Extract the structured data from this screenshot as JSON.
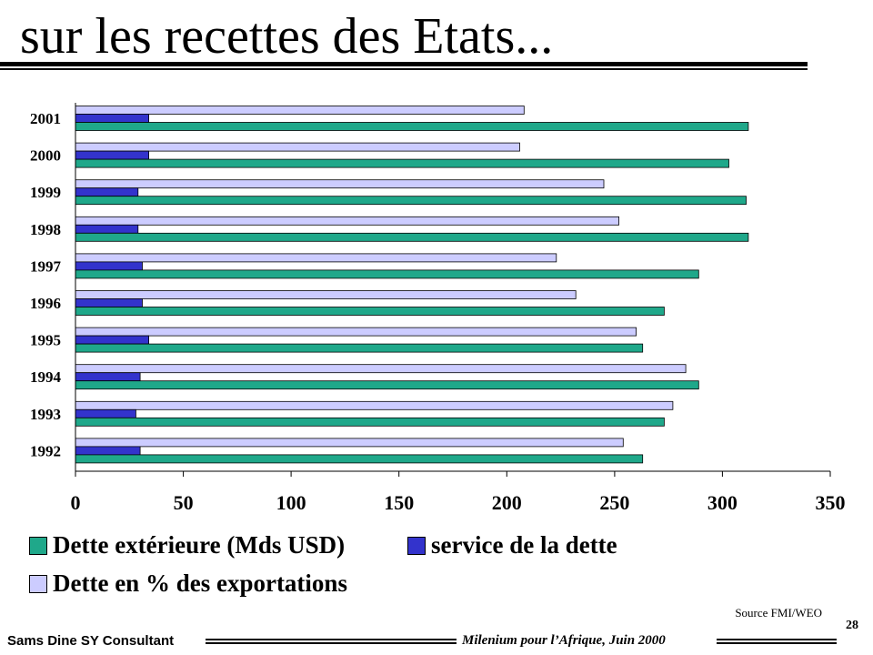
{
  "slide": {
    "title": "sur les recettes des Etats...",
    "source": "Source FMI/WEO",
    "page_number": "28",
    "footer_left": "Sams Dine SY Consultant",
    "footer_right": "Milenium pour l’Afrique, Juin 2000"
  },
  "chart_data": {
    "type": "bar",
    "orientation": "horizontal",
    "categories": [
      "2001",
      "2000",
      "1999",
      "1998",
      "1997",
      "1996",
      "1995",
      "1994",
      "1993",
      "1992"
    ],
    "series": [
      {
        "name": "Dette en % des exportations",
        "color": "#ccccff",
        "values": [
          208,
          206,
          245,
          252,
          223,
          232,
          260,
          283,
          277,
          254
        ]
      },
      {
        "name": "service de la dette",
        "color": "#3333cc",
        "values": [
          34,
          34,
          29,
          29,
          31,
          31,
          34,
          30,
          28,
          30
        ]
      },
      {
        "name": "Dette extérieure (Mds USD)",
        "color": "#1fa88a",
        "values": [
          312,
          303,
          311,
          312,
          289,
          273,
          263,
          289,
          273,
          263
        ]
      }
    ],
    "xlim": [
      0,
      350
    ],
    "xticks": [
      "0",
      "50",
      "100",
      "150",
      "200",
      "250",
      "300",
      "350"
    ],
    "legend": [
      "Dette extérieure (Mds USD)",
      "service de la dette",
      "Dette en % des exportations"
    ],
    "legend_position": "bottom",
    "grid": false
  }
}
